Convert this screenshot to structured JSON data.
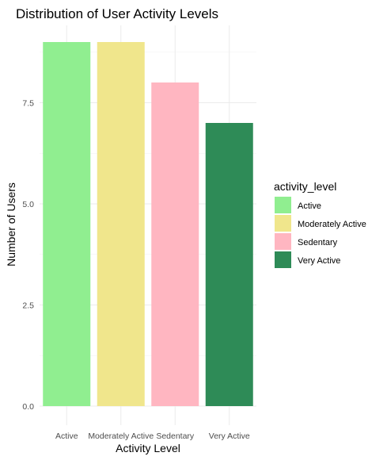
{
  "chart_data": {
    "type": "bar",
    "title": "Distribution of User Activity Levels",
    "xlabel": "Activity Level",
    "ylabel": "Number of Users",
    "categories": [
      "Active",
      "Moderately Active",
      "Sedentary",
      "Very Active"
    ],
    "values": [
      9,
      9,
      8,
      7
    ],
    "colors": [
      "#90EE90",
      "#F0E68C",
      "#FFB6C1",
      "#2E8B57"
    ],
    "ylim": [
      0,
      9.45
    ],
    "yticks": [
      0,
      2.5,
      5,
      7.5
    ],
    "ytick_labels": [
      "0.0",
      "2.5",
      "5.0",
      "7.5"
    ],
    "grid": true,
    "legend": {
      "title": "activity_level",
      "position": "right",
      "entries": [
        "Active",
        "Moderately Active",
        "Sedentary",
        "Very Active"
      ]
    }
  }
}
